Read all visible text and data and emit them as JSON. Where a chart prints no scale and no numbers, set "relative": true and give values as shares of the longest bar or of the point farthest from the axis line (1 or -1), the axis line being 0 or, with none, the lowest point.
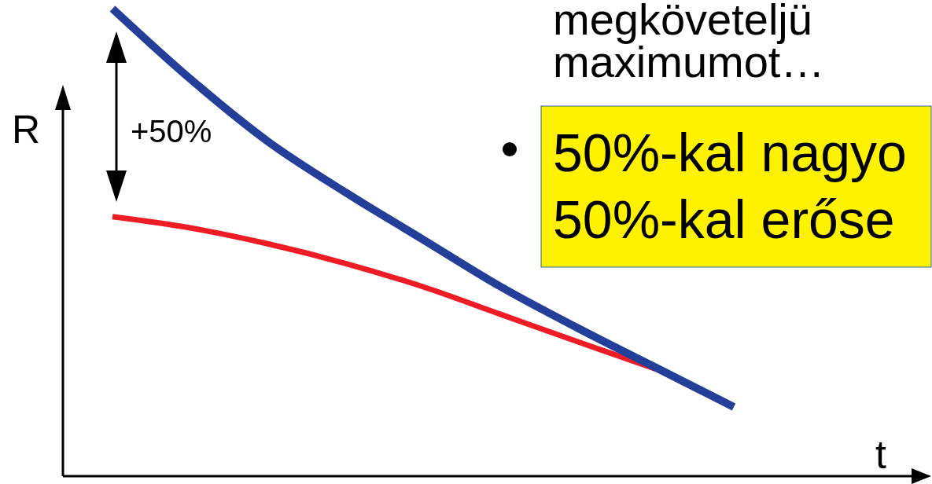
{
  "chart_data": {
    "type": "line",
    "relative": true,
    "xlabel": "t",
    "ylabel": "R",
    "categories": [
      null,
      null,
      null,
      null,
      null,
      null,
      null,
      null,
      null
    ],
    "series": [
      {
        "color": "#ee1c25",
        "values": [
          0.555,
          0.531,
          0.497,
          0.455,
          0.405,
          0.346,
          0.287,
          0.229,
          null
        ]
      },
      {
        "color": "#233f99",
        "values": [
          1,
          0.85,
          0.716,
          0.607,
          0.506,
          0.405,
          0.316,
          0.232,
          0.148
        ]
      }
    ],
    "annotations": [
      "+50%",
      "megköveteljü",
      "maximumot…",
      "50%-kal nagyo",
      "50%-kal erőse"
    ]
  }
}
